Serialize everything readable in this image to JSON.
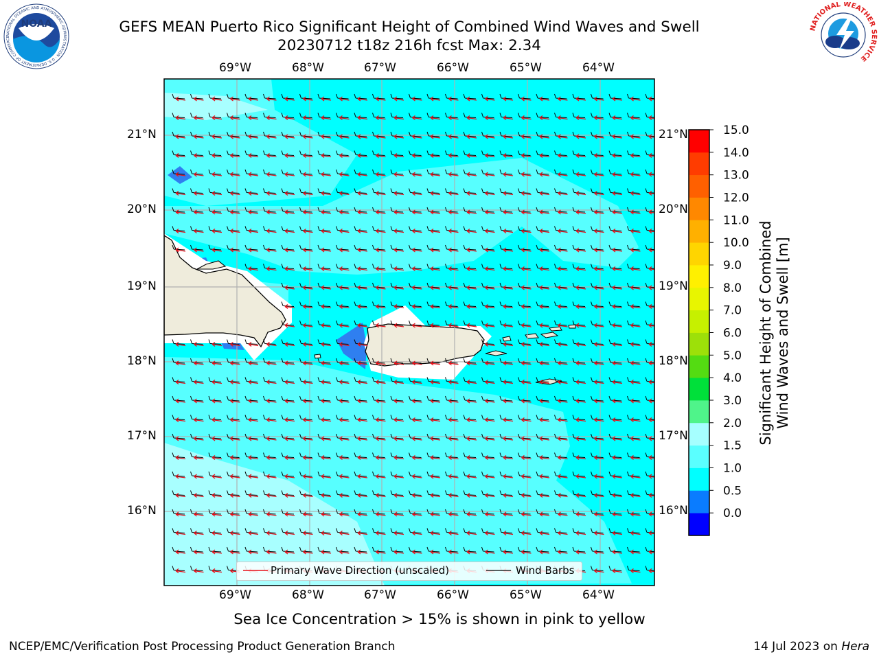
{
  "header": {
    "title_line1": "GEFS MEAN Puerto Rico Significant Height of Combined Wind Waves and Swell",
    "title_line2": "20230712 t18z 216h fcst   Max: 2.34"
  },
  "logos": {
    "left": {
      "text": "NOAA",
      "ring_text": "NATIONAL OCEANIC AND ATMOSPHERIC ADMINISTRATION · U.S. DEPARTMENT OF COMMERCE"
    },
    "right": {
      "ring_text": "NATIONAL WEATHER SERVICE"
    }
  },
  "map": {
    "lon_ticks": [
      "69°W",
      "68°W",
      "67°W",
      "66°W",
      "65°W",
      "64°W"
    ],
    "lat_ticks": [
      "21°N",
      "20°N",
      "19°N",
      "18°N",
      "17°N",
      "16°N"
    ],
    "legend": {
      "wave_direction": "Primary Wave Direction (unscaled)",
      "wind_barbs": "Wind Barbs"
    },
    "colors": {
      "ocean_main": "#00ffff",
      "ocean_light": "#57ffff",
      "ocean_lighter": "#a8ffff",
      "land": "#efecdc",
      "sea_ice_mask": "#ffffff",
      "low_wave": "#2f7ff0",
      "wave_arrow": "#e8101a",
      "wind_barb": "#000000"
    }
  },
  "colorbar": {
    "label_line1": "Significant Height of Combined",
    "label_line2": "Wind Waves and Swell [m]",
    "ticks": [
      "15.0",
      "14.0",
      "13.0",
      "12.0",
      "11.0",
      "10.0",
      "9.0",
      "8.0",
      "7.0",
      "6.0",
      "5.0",
      "4.0",
      "3.0",
      "2.0",
      "1.5",
      "1.0",
      "0.5",
      "0.0"
    ],
    "colors_bottom_to_top": [
      "#0000ff",
      "#0a7cff",
      "#00ffff",
      "#5affff",
      "#a6ffff",
      "#4ff48a",
      "#00e03a",
      "#54dc12",
      "#9de009",
      "#c6f000",
      "#e8f500",
      "#fff000",
      "#ffd500",
      "#ffb000",
      "#ff8800",
      "#ff6000",
      "#ff3c00",
      "#ff0000"
    ]
  },
  "caption": "Sea Ice Concentration > 15% is shown in pink to yellow",
  "footer": {
    "left": "NCEP/EMC/Verification Post Processing Product Generation Branch",
    "right_date": "14 Jul 2023 on ",
    "right_host": "Hera"
  }
}
